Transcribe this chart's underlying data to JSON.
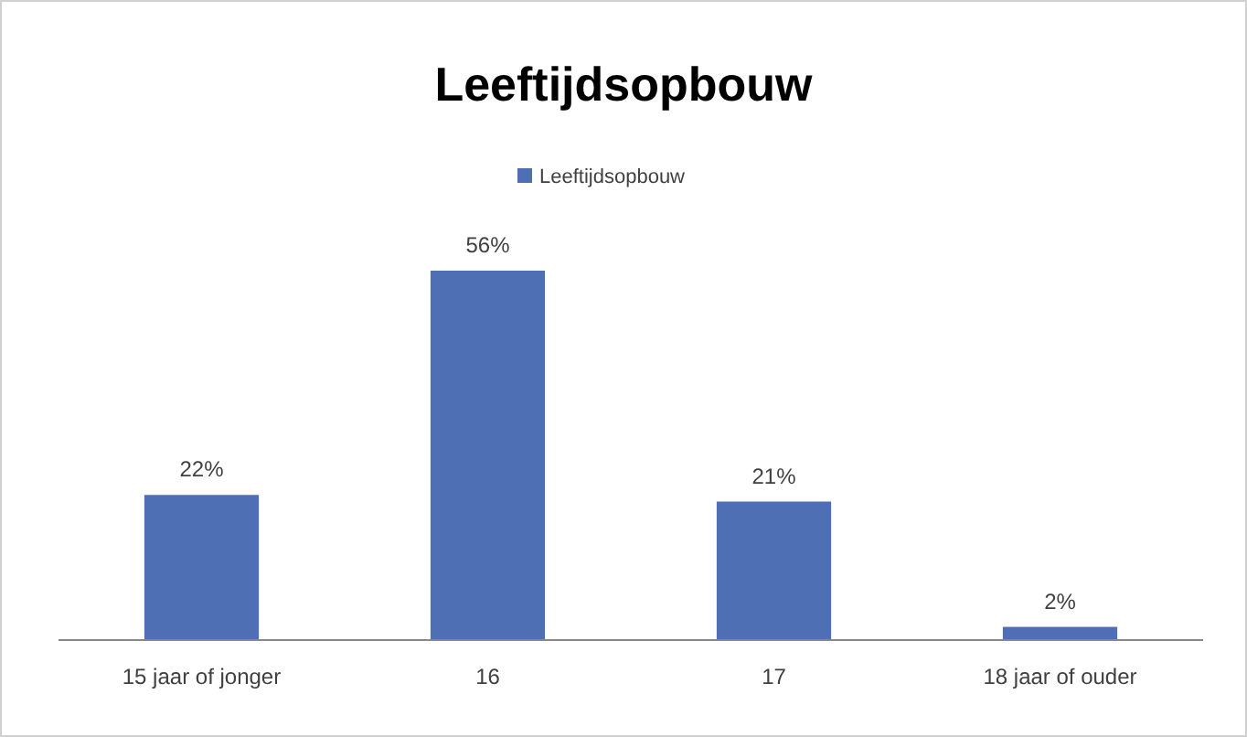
{
  "chart_data": {
    "type": "bar",
    "title": "Leeftijdsopbouw",
    "categories": [
      "15 jaar of jonger",
      "16",
      "17",
      "18 jaar of ouder"
    ],
    "series": [
      {
        "name": "Leeftijdsopbouw",
        "color": "#4f6fb5",
        "values": [
          22,
          56,
          21,
          2
        ],
        "value_labels": [
          "22%",
          "56%",
          "21%",
          "2%"
        ]
      }
    ],
    "legend": "top",
    "grid": false
  }
}
